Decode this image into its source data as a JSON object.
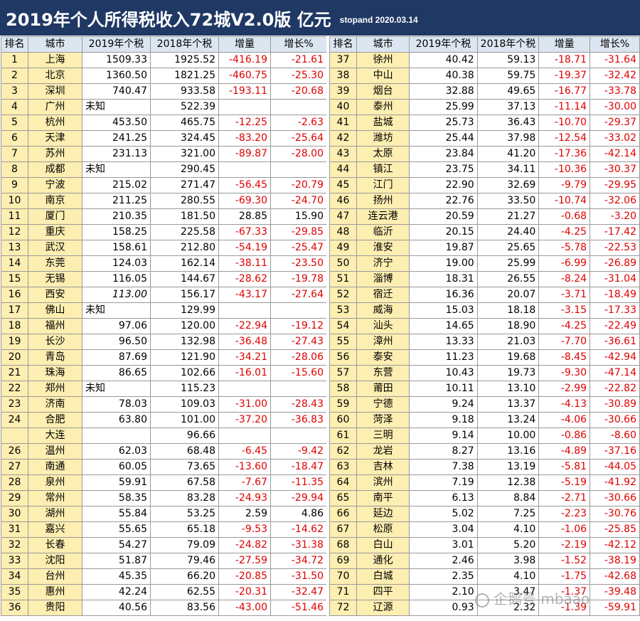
{
  "title": {
    "main": "2019年个人所得税收入72城V2.0版  亿元",
    "sub": "stopand 2020.03.14"
  },
  "headers": [
    "排名",
    "城市",
    "2019年个税",
    "2018年个税",
    "增量",
    "增长%"
  ],
  "rows_left": [
    {
      "rank": "1",
      "city": "上海",
      "y2019": "1509.33",
      "y2018": "1925.52",
      "delta": "-416.19",
      "pct": "-21.61"
    },
    {
      "rank": "2",
      "city": "北京",
      "y2019": "1360.50",
      "y2018": "1821.25",
      "delta": "-460.75",
      "pct": "-25.30"
    },
    {
      "rank": "3",
      "city": "深圳",
      "y2019": "740.47",
      "y2018": "933.58",
      "delta": "-193.11",
      "pct": "-20.68"
    },
    {
      "rank": "4",
      "city": "广州",
      "y2019": "未知",
      "y2018": "522.39",
      "delta": "",
      "pct": ""
    },
    {
      "rank": "5",
      "city": "杭州",
      "y2019": "453.50",
      "y2018": "465.75",
      "delta": "-12.25",
      "pct": "-2.63"
    },
    {
      "rank": "6",
      "city": "天津",
      "y2019": "241.25",
      "y2018": "324.45",
      "delta": "-83.20",
      "pct": "-25.64"
    },
    {
      "rank": "7",
      "city": "苏州",
      "y2019": "231.13",
      "y2018": "321.00",
      "delta": "-89.87",
      "pct": "-28.00"
    },
    {
      "rank": "8",
      "city": "成都",
      "y2019": "未知",
      "y2018": "290.45",
      "delta": "",
      "pct": ""
    },
    {
      "rank": "9",
      "city": "宁波",
      "y2019": "215.02",
      "y2018": "271.47",
      "delta": "-56.45",
      "pct": "-20.79"
    },
    {
      "rank": "10",
      "city": "南京",
      "y2019": "211.25",
      "y2018": "280.55",
      "delta": "-69.30",
      "pct": "-24.70"
    },
    {
      "rank": "11",
      "city": "厦门",
      "y2019": "210.35",
      "y2018": "181.50",
      "delta": "28.85",
      "pct": "15.90"
    },
    {
      "rank": "12",
      "city": "重庆",
      "y2019": "158.25",
      "y2018": "225.58",
      "delta": "-67.33",
      "pct": "-29.85"
    },
    {
      "rank": "13",
      "city": "武汉",
      "y2019": "158.61",
      "y2018": "212.80",
      "delta": "-54.19",
      "pct": "-25.47"
    },
    {
      "rank": "14",
      "city": "东莞",
      "y2019": "124.03",
      "y2018": "162.14",
      "delta": "-38.11",
      "pct": "-23.50"
    },
    {
      "rank": "15",
      "city": "无锡",
      "y2019": "116.05",
      "y2018": "144.67",
      "delta": "-28.62",
      "pct": "-19.78"
    },
    {
      "rank": "16",
      "city": "西安",
      "y2019": "113.00",
      "y2018": "156.17",
      "delta": "-43.17",
      "pct": "-27.64"
    },
    {
      "rank": "17",
      "city": "佛山",
      "y2019": "未知",
      "y2018": "129.99",
      "delta": "",
      "pct": ""
    },
    {
      "rank": "18",
      "city": "福州",
      "y2019": "97.06",
      "y2018": "120.00",
      "delta": "-22.94",
      "pct": "-19.12"
    },
    {
      "rank": "19",
      "city": "长沙",
      "y2019": "96.50",
      "y2018": "132.98",
      "delta": "-36.48",
      "pct": "-27.43"
    },
    {
      "rank": "20",
      "city": "青岛",
      "y2019": "87.69",
      "y2018": "121.90",
      "delta": "-34.21",
      "pct": "-28.06"
    },
    {
      "rank": "21",
      "city": "珠海",
      "y2019": "86.65",
      "y2018": "102.66",
      "delta": "-16.01",
      "pct": "-15.60"
    },
    {
      "rank": "22",
      "city": "郑州",
      "y2019": "未知",
      "y2018": "115.23",
      "delta": "",
      "pct": ""
    },
    {
      "rank": "23",
      "city": "济南",
      "y2019": "78.03",
      "y2018": "109.03",
      "delta": "-31.00",
      "pct": "-28.43"
    },
    {
      "rank": "24",
      "city": "合肥",
      "y2019": "63.80",
      "y2018": "101.00",
      "delta": "-37.20",
      "pct": "-36.83"
    },
    {
      "rank": "",
      "city": "大连",
      "y2019": "",
      "y2018": "96.66",
      "delta": "",
      "pct": ""
    },
    {
      "rank": "26",
      "city": "温州",
      "y2019": "62.03",
      "y2018": "68.48",
      "delta": "-6.45",
      "pct": "-9.42"
    },
    {
      "rank": "27",
      "city": "南通",
      "y2019": "60.05",
      "y2018": "73.65",
      "delta": "-13.60",
      "pct": "-18.47"
    },
    {
      "rank": "28",
      "city": "泉州",
      "y2019": "59.91",
      "y2018": "67.58",
      "delta": "-7.67",
      "pct": "-11.35"
    },
    {
      "rank": "29",
      "city": "常州",
      "y2019": "58.35",
      "y2018": "83.28",
      "delta": "-24.93",
      "pct": "-29.94"
    },
    {
      "rank": "30",
      "city": "湖州",
      "y2019": "55.84",
      "y2018": "53.25",
      "delta": "2.59",
      "pct": "4.86"
    },
    {
      "rank": "31",
      "city": "嘉兴",
      "y2019": "55.65",
      "y2018": "65.18",
      "delta": "-9.53",
      "pct": "-14.62"
    },
    {
      "rank": "32",
      "city": "长春",
      "y2019": "54.27",
      "y2018": "79.09",
      "delta": "-24.82",
      "pct": "-31.38"
    },
    {
      "rank": "33",
      "city": "沈阳",
      "y2019": "51.87",
      "y2018": "79.46",
      "delta": "-27.59",
      "pct": "-34.72"
    },
    {
      "rank": "34",
      "city": "台州",
      "y2019": "45.35",
      "y2018": "66.20",
      "delta": "-20.85",
      "pct": "-31.50"
    },
    {
      "rank": "35",
      "city": "惠州",
      "y2019": "42.24",
      "y2018": "62.55",
      "delta": "-20.31",
      "pct": "-32.47"
    },
    {
      "rank": "36",
      "city": "贵阳",
      "y2019": "40.56",
      "y2018": "83.56",
      "delta": "-43.00",
      "pct": "-51.46"
    }
  ],
  "rows_right": [
    {
      "rank": "37",
      "city": "徐州",
      "y2019": "40.42",
      "y2018": "59.13",
      "delta": "-18.71",
      "pct": "-31.64"
    },
    {
      "rank": "38",
      "city": "中山",
      "y2019": "40.38",
      "y2018": "59.75",
      "delta": "-19.37",
      "pct": "-32.42"
    },
    {
      "rank": "39",
      "city": "烟台",
      "y2019": "32.88",
      "y2018": "49.65",
      "delta": "-16.77",
      "pct": "-33.78"
    },
    {
      "rank": "40",
      "city": "泰州",
      "y2019": "25.99",
      "y2018": "37.13",
      "delta": "-11.14",
      "pct": "-30.00"
    },
    {
      "rank": "41",
      "city": "盐城",
      "y2019": "25.73",
      "y2018": "36.43",
      "delta": "-10.70",
      "pct": "-29.37"
    },
    {
      "rank": "42",
      "city": "潍坊",
      "y2019": "25.44",
      "y2018": "37.98",
      "delta": "-12.54",
      "pct": "-33.02"
    },
    {
      "rank": "43",
      "city": "太原",
      "y2019": "23.84",
      "y2018": "41.20",
      "delta": "-17.36",
      "pct": "-42.14"
    },
    {
      "rank": "44",
      "city": "镇江",
      "y2019": "23.75",
      "y2018": "34.11",
      "delta": "-10.36",
      "pct": "-30.37"
    },
    {
      "rank": "45",
      "city": "江门",
      "y2019": "22.90",
      "y2018": "32.69",
      "delta": "-9.79",
      "pct": "-29.95"
    },
    {
      "rank": "46",
      "city": "扬州",
      "y2019": "22.76",
      "y2018": "33.50",
      "delta": "-10.74",
      "pct": "-32.06"
    },
    {
      "rank": "47",
      "city": "连云港",
      "y2019": "20.59",
      "y2018": "21.27",
      "delta": "-0.68",
      "pct": "-3.20"
    },
    {
      "rank": "48",
      "city": "临沂",
      "y2019": "20.15",
      "y2018": "24.40",
      "delta": "-4.25",
      "pct": "-17.42"
    },
    {
      "rank": "49",
      "city": "淮安",
      "y2019": "19.87",
      "y2018": "25.65",
      "delta": "-5.78",
      "pct": "-22.53"
    },
    {
      "rank": "50",
      "city": "济宁",
      "y2019": "19.00",
      "y2018": "25.99",
      "delta": "-6.99",
      "pct": "-26.89"
    },
    {
      "rank": "51",
      "city": "淄博",
      "y2019": "18.31",
      "y2018": "26.55",
      "delta": "-8.24",
      "pct": "-31.04"
    },
    {
      "rank": "52",
      "city": "宿迁",
      "y2019": "16.36",
      "y2018": "20.07",
      "delta": "-3.71",
      "pct": "-18.49"
    },
    {
      "rank": "53",
      "city": "威海",
      "y2019": "15.03",
      "y2018": "18.18",
      "delta": "-3.15",
      "pct": "-17.33"
    },
    {
      "rank": "54",
      "city": "汕头",
      "y2019": "14.65",
      "y2018": "18.90",
      "delta": "-4.25",
      "pct": "-22.49"
    },
    {
      "rank": "55",
      "city": "漳州",
      "y2019": "13.33",
      "y2018": "21.03",
      "delta": "-7.70",
      "pct": "-36.61"
    },
    {
      "rank": "56",
      "city": "泰安",
      "y2019": "11.23",
      "y2018": "19.68",
      "delta": "-8.45",
      "pct": "-42.94"
    },
    {
      "rank": "57",
      "city": "东营",
      "y2019": "10.43",
      "y2018": "19.73",
      "delta": "-9.30",
      "pct": "-47.14"
    },
    {
      "rank": "58",
      "city": "莆田",
      "y2019": "10.11",
      "y2018": "13.10",
      "delta": "-2.99",
      "pct": "-22.82"
    },
    {
      "rank": "59",
      "city": "宁德",
      "y2019": "9.24",
      "y2018": "13.37",
      "delta": "-4.13",
      "pct": "-30.89"
    },
    {
      "rank": "60",
      "city": "菏泽",
      "y2019": "9.18",
      "y2018": "13.24",
      "delta": "-4.06",
      "pct": "-30.66"
    },
    {
      "rank": "61",
      "city": "三明",
      "y2019": "9.14",
      "y2018": "10.00",
      "delta": "-0.86",
      "pct": "-8.60"
    },
    {
      "rank": "62",
      "city": "龙岩",
      "y2019": "8.27",
      "y2018": "13.16",
      "delta": "-4.89",
      "pct": "-37.16"
    },
    {
      "rank": "63",
      "city": "吉林",
      "y2019": "7.38",
      "y2018": "13.19",
      "delta": "-5.81",
      "pct": "-44.05"
    },
    {
      "rank": "64",
      "city": "滨州",
      "y2019": "7.19",
      "y2018": "12.38",
      "delta": "-5.19",
      "pct": "-41.92"
    },
    {
      "rank": "65",
      "city": "南平",
      "y2019": "6.13",
      "y2018": "8.84",
      "delta": "-2.71",
      "pct": "-30.66"
    },
    {
      "rank": "66",
      "city": "延边",
      "y2019": "5.02",
      "y2018": "7.25",
      "delta": "-2.23",
      "pct": "-30.76"
    },
    {
      "rank": "67",
      "city": "松原",
      "y2019": "3.04",
      "y2018": "4.10",
      "delta": "-1.06",
      "pct": "-25.85"
    },
    {
      "rank": "68",
      "city": "白山",
      "y2019": "3.01",
      "y2018": "5.20",
      "delta": "-2.19",
      "pct": "-42.12"
    },
    {
      "rank": "69",
      "city": "通化",
      "y2019": "2.46",
      "y2018": "3.98",
      "delta": "-1.52",
      "pct": "-38.19"
    },
    {
      "rank": "70",
      "city": "白城",
      "y2019": "2.35",
      "y2018": "4.10",
      "delta": "-1.75",
      "pct": "-42.68"
    },
    {
      "rank": "71",
      "city": "四平",
      "y2019": "2.10",
      "y2018": "3.47",
      "delta": "-1.37",
      "pct": "-39.48"
    },
    {
      "rank": "72",
      "city": "辽源",
      "y2019": "0.93",
      "y2018": "2.32",
      "delta": "-1.39",
      "pct": "-59.91"
    }
  ],
  "watermark": "企鹅号 mbaao",
  "colors": {
    "title_bg": "#1f3864",
    "header_bg": "#dce6f1",
    "rank_city_bg": "#fdeeb1",
    "negative_text": "#e00000"
  }
}
